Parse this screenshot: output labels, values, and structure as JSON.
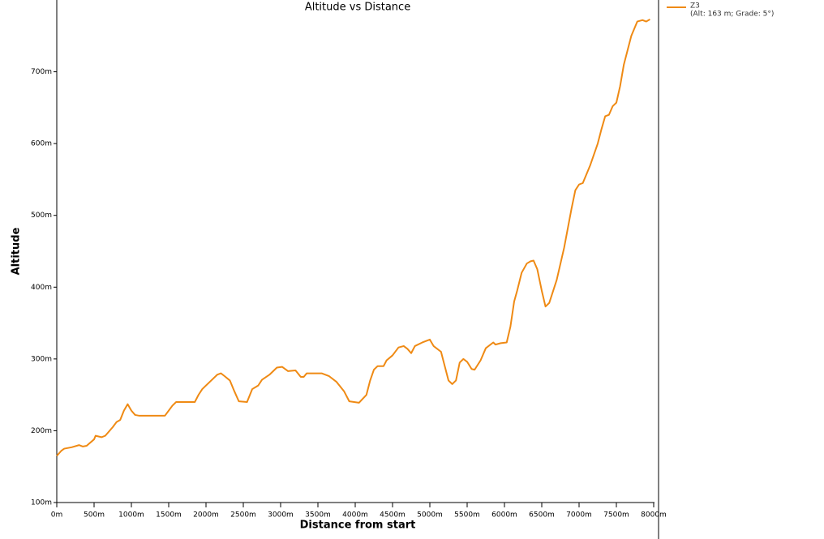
{
  "chart_data": {
    "type": "line",
    "title": "Altitude vs Distance",
    "x_label": "Distance from start",
    "y_label": "Altitude",
    "legend_detail": "(Alt: 163 m; Grade: 5°)",
    "series": [
      {
        "name": "Z3",
        "color": "#ef8a14",
        "x": [
          0,
          60,
          100,
          200,
          300,
          350,
          400,
          500,
          520,
          600,
          650,
          750,
          800,
          850,
          900,
          950,
          1000,
          1050,
          1100,
          1450,
          1550,
          1600,
          1850,
          1900,
          1950,
          2050,
          2150,
          2200,
          2250,
          2320,
          2380,
          2440,
          2550,
          2620,
          2700,
          2750,
          2850,
          2950,
          3020,
          3100,
          3200,
          3270,
          3310,
          3350,
          3550,
          3650,
          3750,
          3850,
          3920,
          4050,
          4150,
          4200,
          4250,
          4300,
          4380,
          4420,
          4500,
          4580,
          4650,
          4700,
          4750,
          4800,
          4900,
          5000,
          5050,
          5150,
          5200,
          5250,
          5300,
          5350,
          5400,
          5450,
          5500,
          5560,
          5600,
          5680,
          5750,
          5850,
          5880,
          5950,
          6030,
          6080,
          6130,
          6170,
          6230,
          6300,
          6350,
          6390,
          6440,
          6500,
          6550,
          6600,
          6700,
          6800,
          6900,
          6950,
          7000,
          7050,
          7150,
          7250,
          7300,
          7350,
          7400,
          7450,
          7500,
          7550,
          7600,
          7700,
          7780,
          7850,
          7900,
          7950
        ],
        "values": [
          165,
          172,
          175,
          177,
          180,
          178,
          179,
          188,
          193,
          191,
          193,
          205,
          212,
          215,
          228,
          237,
          228,
          222,
          221,
          221,
          235,
          240,
          240,
          250,
          258,
          268,
          278,
          280,
          276,
          270,
          255,
          241,
          240,
          258,
          263,
          271,
          278,
          288,
          289,
          283,
          284,
          275,
          275,
          280,
          280,
          276,
          268,
          255,
          241,
          239,
          250,
          270,
          285,
          290,
          290,
          298,
          305,
          316,
          318,
          314,
          308,
          318,
          323,
          327,
          318,
          310,
          290,
          270,
          265,
          270,
          295,
          300,
          296,
          286,
          285,
          298,
          315,
          323,
          320,
          322,
          323,
          345,
          380,
          395,
          420,
          433,
          436,
          437,
          425,
          395,
          373,
          378,
          410,
          455,
          510,
          535,
          543,
          545,
          570,
          600,
          620,
          638,
          640,
          652,
          657,
          680,
          710,
          750,
          770,
          772,
          770,
          773
        ]
      }
    ],
    "xlim": [
      0,
      8000
    ],
    "ylim": [
      100,
      800
    ],
    "xticks": [
      {
        "value": 0,
        "label": "0m"
      },
      {
        "value": 500,
        "label": "500m"
      },
      {
        "value": 1000,
        "label": "1000m"
      },
      {
        "value": 1500,
        "label": "1500m"
      },
      {
        "value": 2000,
        "label": "2000m"
      },
      {
        "value": 2500,
        "label": "2500m"
      },
      {
        "value": 3000,
        "label": "3000m"
      },
      {
        "value": 3500,
        "label": "3500m"
      },
      {
        "value": 4000,
        "label": "4000m"
      },
      {
        "value": 4500,
        "label": "4500m"
      },
      {
        "value": 5000,
        "label": "5000m"
      },
      {
        "value": 5500,
        "label": "5500m"
      },
      {
        "value": 6000,
        "label": "6000m"
      },
      {
        "value": 6500,
        "label": "6500m"
      },
      {
        "value": 7000,
        "label": "7000m"
      },
      {
        "value": 7500,
        "label": "7500m"
      },
      {
        "value": 8000,
        "label": "8000m"
      }
    ],
    "yticks": [
      {
        "value": 100,
        "label": "100m"
      },
      {
        "value": 200,
        "label": "200m"
      },
      {
        "value": 300,
        "label": "300m"
      },
      {
        "value": 400,
        "label": "400m"
      },
      {
        "value": 500,
        "label": "500m"
      },
      {
        "value": 600,
        "label": "600m"
      },
      {
        "value": 700,
        "label": "700m"
      }
    ],
    "grid": false
  }
}
